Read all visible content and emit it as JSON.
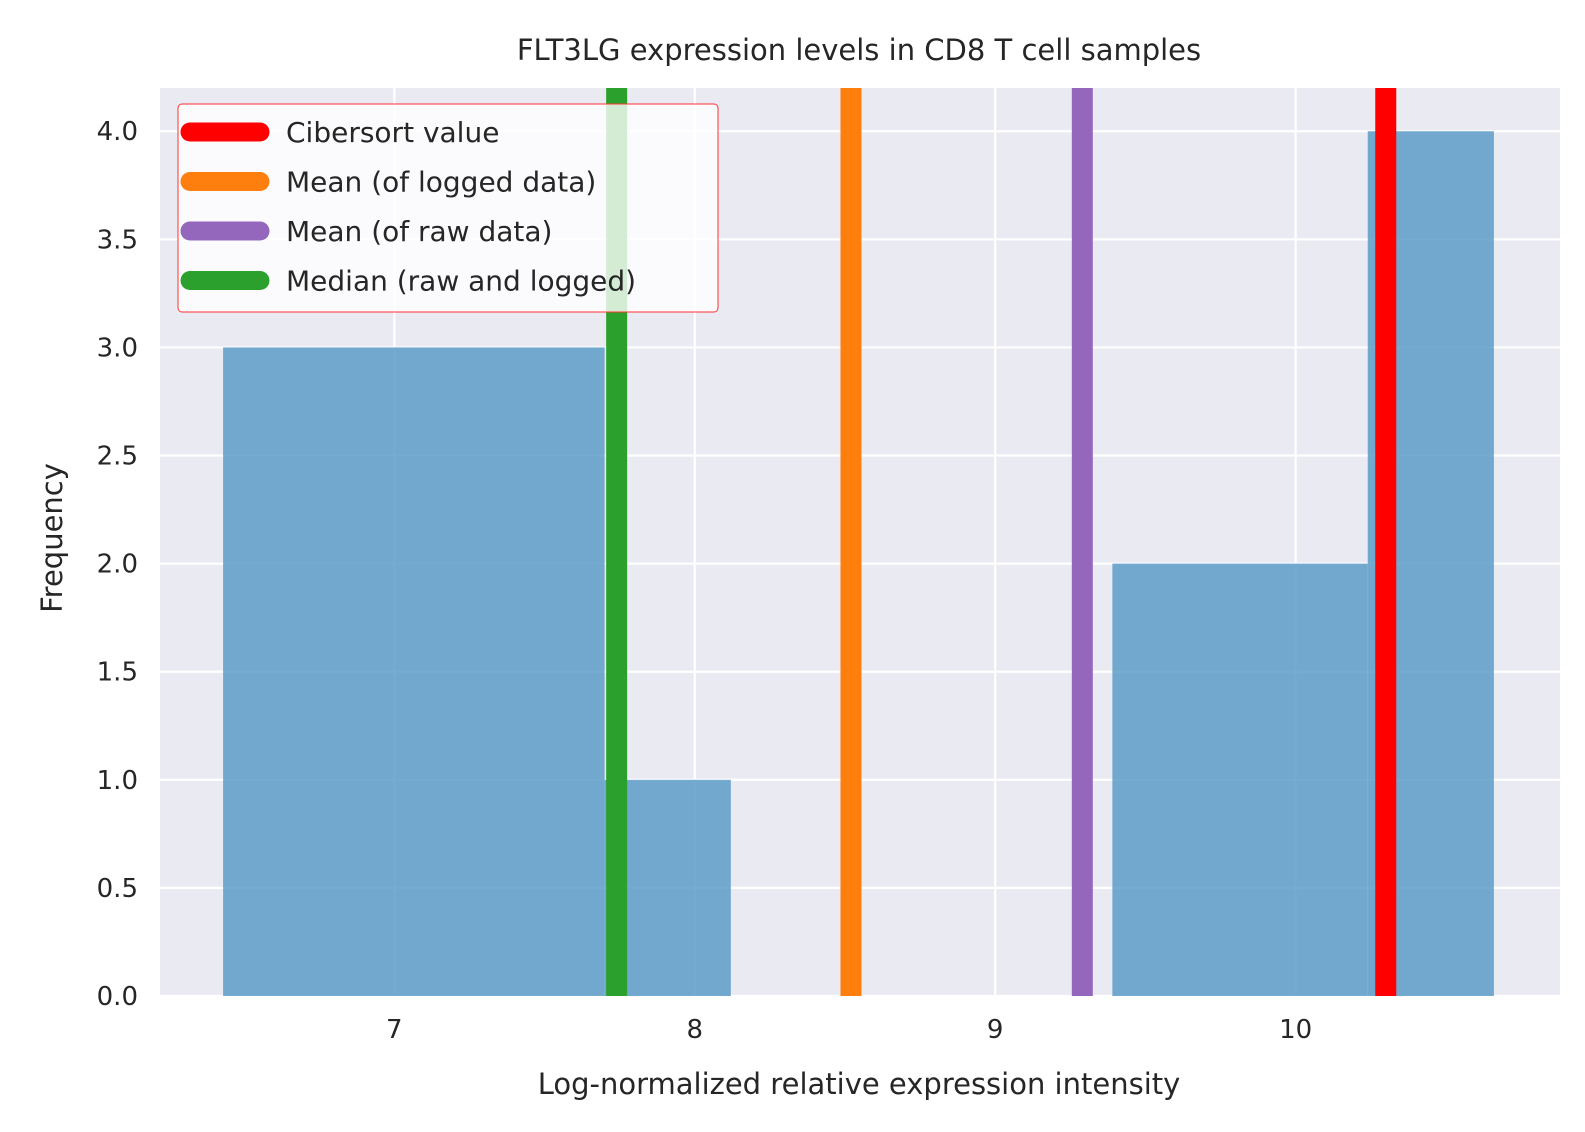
{
  "chart_data": {
    "type": "bar",
    "title": "FLT3LG expression levels in CD8 T cell samples",
    "xlabel": "Log-normalized relative expression intensity",
    "ylabel": "Frequency",
    "xlim": [
      6.22,
      10.88
    ],
    "ylim": [
      0,
      4.2
    ],
    "xticks": [
      7,
      8,
      9,
      10
    ],
    "yticks": [
      0.0,
      0.5,
      1.0,
      1.5,
      2.0,
      2.5,
      3.0,
      3.5,
      4.0
    ],
    "grid": true,
    "legend_position": "top-left",
    "histogram_bins": [
      {
        "x0": 6.43,
        "x1": 7.7,
        "count": 3
      },
      {
        "x0": 7.7,
        "x1": 8.12,
        "count": 1
      },
      {
        "x0": 9.39,
        "x1": 10.24,
        "count": 2
      },
      {
        "x0": 10.24,
        "x1": 10.66,
        "count": 4
      }
    ],
    "bar_color": "#5d9cc8",
    "vertical_lines": [
      {
        "name": "Cibersort value",
        "x": 10.3,
        "color": "#ff0000"
      },
      {
        "name": "Mean (of logged data)",
        "x": 8.52,
        "color": "#ff7f0e"
      },
      {
        "name": "Mean (of raw data)",
        "x": 9.29,
        "color": "#9467bd"
      },
      {
        "name": "Median (raw and logged)",
        "x": 7.74,
        "color": "#2ca02c"
      }
    ]
  }
}
